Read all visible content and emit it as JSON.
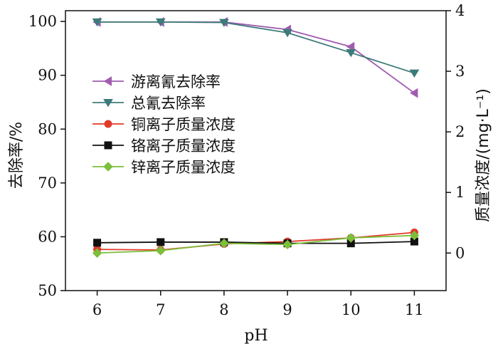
{
  "chart_data": {
    "type": "line",
    "x": [
      6,
      7,
      8,
      9,
      10,
      11
    ],
    "xlabel": "pH",
    "xlim": [
      5.5,
      11.5
    ],
    "ylabel_left": "去除率/%",
    "ylim_left": [
      50,
      102
    ],
    "yticks_left": [
      50,
      60,
      70,
      80,
      90,
      100
    ],
    "ylabel_right": "质量浓度/(mg·L⁻¹)",
    "ylim_right": [
      -0.62,
      4
    ],
    "yticks_right": [
      0,
      1,
      2,
      3,
      4
    ],
    "grid": false,
    "legend_position": "left-middle",
    "series": [
      {
        "name": "游离氰去除率",
        "axis": "left",
        "color": "#a05cb0",
        "marker": "triangle-left",
        "values": [
          99.9,
          99.9,
          99.9,
          98.5,
          95.3,
          86.7
        ]
      },
      {
        "name": "总氰去除率",
        "axis": "left",
        "color": "#3d7b7a",
        "marker": "triangle-down",
        "values": [
          99.9,
          99.9,
          99.8,
          97.9,
          94.2,
          90.4
        ]
      },
      {
        "name": "铜离子质量浓度",
        "axis": "right",
        "color": "#e03a2a",
        "marker": "circle",
        "values": [
          0.06,
          0.05,
          0.15,
          0.19,
          0.25,
          0.34
        ]
      },
      {
        "name": "铬离子质量浓度",
        "axis": "right",
        "color": "#111111",
        "marker": "square",
        "values": [
          0.17,
          0.18,
          0.18,
          0.16,
          0.16,
          0.19
        ]
      },
      {
        "name": "锌离子质量浓度",
        "axis": "right",
        "color": "#7bbf3a",
        "marker": "diamond",
        "values": [
          0.0,
          0.04,
          0.16,
          0.14,
          0.25,
          0.29
        ]
      }
    ]
  }
}
